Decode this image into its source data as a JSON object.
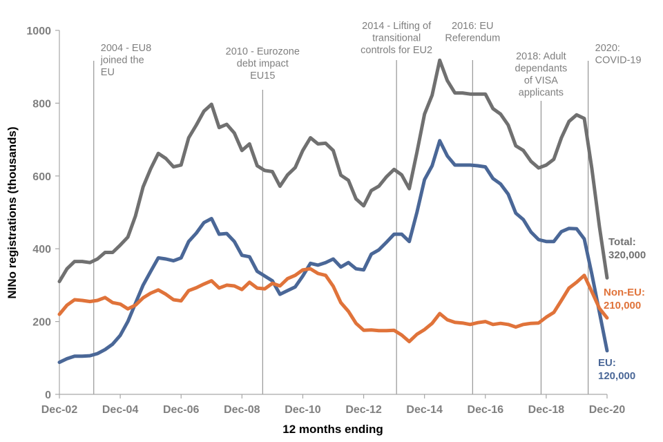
{
  "chart_data": {
    "type": "line",
    "title": "",
    "xlabel": "12 months ending",
    "ylabel": "NINo registrations (thousands)",
    "ylim": [
      0,
      1000
    ],
    "yticks": [
      0,
      200,
      400,
      600,
      800,
      1000
    ],
    "x_range": [
      2002.92,
      2020.92
    ],
    "xticks": [
      {
        "label": "Dec-02",
        "x": 2002.92
      },
      {
        "label": "Dec-04",
        "x": 2004.92
      },
      {
        "label": "Dec-06",
        "x": 2006.92
      },
      {
        "label": "Dec-08",
        "x": 2008.92
      },
      {
        "label": "Dec-10",
        "x": 2010.92
      },
      {
        "label": "Dec-12",
        "x": 2012.92
      },
      {
        "label": "Dec-14",
        "x": 2014.92
      },
      {
        "label": "Dec-16",
        "x": 2016.92
      },
      {
        "label": "Dec-18",
        "x": 2018.92
      },
      {
        "label": "Dec-20",
        "x": 2020.92
      }
    ],
    "grid": false,
    "series": [
      {
        "name": "Total",
        "color": "#707070",
        "end_label": [
          "Total:",
          "320,000"
        ],
        "points": [
          [
            2002.92,
            310
          ],
          [
            2003.17,
            345
          ],
          [
            2003.42,
            365
          ],
          [
            2003.67,
            365
          ],
          [
            2003.92,
            362
          ],
          [
            2004.17,
            372
          ],
          [
            2004.42,
            390
          ],
          [
            2004.67,
            390
          ],
          [
            2004.92,
            410
          ],
          [
            2005.17,
            432
          ],
          [
            2005.42,
            490
          ],
          [
            2005.67,
            570
          ],
          [
            2005.92,
            620
          ],
          [
            2006.17,
            662
          ],
          [
            2006.42,
            648
          ],
          [
            2006.67,
            625
          ],
          [
            2006.92,
            630
          ],
          [
            2007.17,
            705
          ],
          [
            2007.42,
            740
          ],
          [
            2007.67,
            778
          ],
          [
            2007.92,
            797
          ],
          [
            2008.17,
            733
          ],
          [
            2008.42,
            742
          ],
          [
            2008.67,
            718
          ],
          [
            2008.92,
            670
          ],
          [
            2009.17,
            688
          ],
          [
            2009.42,
            628
          ],
          [
            2009.67,
            615
          ],
          [
            2009.92,
            612
          ],
          [
            2010.17,
            572
          ],
          [
            2010.42,
            603
          ],
          [
            2010.67,
            623
          ],
          [
            2010.92,
            670
          ],
          [
            2011.17,
            705
          ],
          [
            2011.42,
            688
          ],
          [
            2011.67,
            690
          ],
          [
            2011.92,
            670
          ],
          [
            2012.17,
            602
          ],
          [
            2012.42,
            588
          ],
          [
            2012.67,
            537
          ],
          [
            2012.92,
            518
          ],
          [
            2013.17,
            560
          ],
          [
            2013.42,
            572
          ],
          [
            2013.67,
            598
          ],
          [
            2013.92,
            618
          ],
          [
            2014.17,
            603
          ],
          [
            2014.42,
            565
          ],
          [
            2014.67,
            665
          ],
          [
            2014.92,
            770
          ],
          [
            2015.17,
            822
          ],
          [
            2015.42,
            918
          ],
          [
            2015.67,
            862
          ],
          [
            2015.92,
            828
          ],
          [
            2016.17,
            828
          ],
          [
            2016.42,
            825
          ],
          [
            2016.67,
            825
          ],
          [
            2016.92,
            825
          ],
          [
            2017.17,
            785
          ],
          [
            2017.42,
            770
          ],
          [
            2017.67,
            740
          ],
          [
            2017.92,
            683
          ],
          [
            2018.17,
            670
          ],
          [
            2018.42,
            640
          ],
          [
            2018.67,
            622
          ],
          [
            2018.92,
            630
          ],
          [
            2019.17,
            646
          ],
          [
            2019.42,
            705
          ],
          [
            2019.67,
            750
          ],
          [
            2019.92,
            768
          ],
          [
            2020.17,
            758
          ],
          [
            2020.42,
            620
          ],
          [
            2020.67,
            460
          ],
          [
            2020.92,
            320
          ]
        ]
      },
      {
        "name": "EU",
        "color": "#4a6797",
        "end_label": [
          "EU:",
          "120,000"
        ],
        "points": [
          [
            2002.92,
            88
          ],
          [
            2003.17,
            98
          ],
          [
            2003.42,
            105
          ],
          [
            2003.67,
            105
          ],
          [
            2003.92,
            106
          ],
          [
            2004.17,
            112
          ],
          [
            2004.42,
            123
          ],
          [
            2004.67,
            138
          ],
          [
            2004.92,
            162
          ],
          [
            2005.17,
            200
          ],
          [
            2005.42,
            250
          ],
          [
            2005.67,
            300
          ],
          [
            2005.92,
            338
          ],
          [
            2006.17,
            375
          ],
          [
            2006.42,
            372
          ],
          [
            2006.67,
            367
          ],
          [
            2006.92,
            375
          ],
          [
            2007.17,
            420
          ],
          [
            2007.42,
            443
          ],
          [
            2007.67,
            472
          ],
          [
            2007.92,
            483
          ],
          [
            2008.17,
            440
          ],
          [
            2008.42,
            442
          ],
          [
            2008.67,
            420
          ],
          [
            2008.92,
            382
          ],
          [
            2009.17,
            378
          ],
          [
            2009.42,
            338
          ],
          [
            2009.67,
            325
          ],
          [
            2009.92,
            312
          ],
          [
            2010.17,
            275
          ],
          [
            2010.42,
            285
          ],
          [
            2010.67,
            295
          ],
          [
            2010.92,
            325
          ],
          [
            2011.17,
            360
          ],
          [
            2011.42,
            355
          ],
          [
            2011.67,
            362
          ],
          [
            2011.92,
            372
          ],
          [
            2012.17,
            350
          ],
          [
            2012.42,
            362
          ],
          [
            2012.67,
            345
          ],
          [
            2012.92,
            342
          ],
          [
            2013.17,
            385
          ],
          [
            2013.42,
            397
          ],
          [
            2013.67,
            418
          ],
          [
            2013.92,
            440
          ],
          [
            2014.17,
            440
          ],
          [
            2014.42,
            420
          ],
          [
            2014.67,
            500
          ],
          [
            2014.92,
            590
          ],
          [
            2015.17,
            628
          ],
          [
            2015.42,
            697
          ],
          [
            2015.67,
            655
          ],
          [
            2015.92,
            630
          ],
          [
            2016.17,
            630
          ],
          [
            2016.42,
            630
          ],
          [
            2016.67,
            628
          ],
          [
            2016.92,
            625
          ],
          [
            2017.17,
            593
          ],
          [
            2017.42,
            578
          ],
          [
            2017.67,
            550
          ],
          [
            2017.92,
            498
          ],
          [
            2018.17,
            480
          ],
          [
            2018.42,
            446
          ],
          [
            2018.67,
            425
          ],
          [
            2018.92,
            420
          ],
          [
            2019.17,
            420
          ],
          [
            2019.42,
            447
          ],
          [
            2019.67,
            456
          ],
          [
            2019.92,
            455
          ],
          [
            2020.17,
            427
          ],
          [
            2020.42,
            330
          ],
          [
            2020.67,
            225
          ],
          [
            2020.92,
            120
          ]
        ]
      },
      {
        "name": "Non-EU",
        "color": "#e0733a",
        "end_label": [
          "Non-EU:",
          "210,000"
        ],
        "points": [
          [
            2002.92,
            220
          ],
          [
            2003.17,
            245
          ],
          [
            2003.42,
            260
          ],
          [
            2003.67,
            258
          ],
          [
            2003.92,
            255
          ],
          [
            2004.17,
            258
          ],
          [
            2004.42,
            266
          ],
          [
            2004.67,
            252
          ],
          [
            2004.92,
            248
          ],
          [
            2005.17,
            235
          ],
          [
            2005.42,
            245
          ],
          [
            2005.67,
            265
          ],
          [
            2005.92,
            278
          ],
          [
            2006.17,
            287
          ],
          [
            2006.42,
            275
          ],
          [
            2006.67,
            260
          ],
          [
            2006.92,
            257
          ],
          [
            2007.17,
            285
          ],
          [
            2007.42,
            293
          ],
          [
            2007.67,
            303
          ],
          [
            2007.92,
            312
          ],
          [
            2008.17,
            292
          ],
          [
            2008.42,
            300
          ],
          [
            2008.67,
            298
          ],
          [
            2008.92,
            288
          ],
          [
            2009.17,
            308
          ],
          [
            2009.42,
            292
          ],
          [
            2009.67,
            290
          ],
          [
            2009.92,
            305
          ],
          [
            2010.17,
            298
          ],
          [
            2010.42,
            318
          ],
          [
            2010.67,
            327
          ],
          [
            2010.92,
            342
          ],
          [
            2011.17,
            345
          ],
          [
            2011.42,
            332
          ],
          [
            2011.67,
            327
          ],
          [
            2011.92,
            297
          ],
          [
            2012.17,
            252
          ],
          [
            2012.42,
            228
          ],
          [
            2012.67,
            195
          ],
          [
            2012.92,
            176
          ],
          [
            2013.17,
            177
          ],
          [
            2013.42,
            175
          ],
          [
            2013.67,
            175
          ],
          [
            2013.92,
            176
          ],
          [
            2014.17,
            163
          ],
          [
            2014.42,
            145
          ],
          [
            2014.67,
            165
          ],
          [
            2014.92,
            178
          ],
          [
            2015.17,
            195
          ],
          [
            2015.42,
            222
          ],
          [
            2015.67,
            205
          ],
          [
            2015.92,
            198
          ],
          [
            2016.17,
            196
          ],
          [
            2016.42,
            192
          ],
          [
            2016.67,
            197
          ],
          [
            2016.92,
            200
          ],
          [
            2017.17,
            192
          ],
          [
            2017.42,
            195
          ],
          [
            2017.67,
            192
          ],
          [
            2017.92,
            185
          ],
          [
            2018.17,
            192
          ],
          [
            2018.42,
            195
          ],
          [
            2018.67,
            196
          ],
          [
            2018.92,
            212
          ],
          [
            2019.17,
            225
          ],
          [
            2019.42,
            258
          ],
          [
            2019.67,
            292
          ],
          [
            2019.92,
            308
          ],
          [
            2020.17,
            327
          ],
          [
            2020.42,
            282
          ],
          [
            2020.67,
            236
          ],
          [
            2020.92,
            210
          ]
        ]
      }
    ],
    "annotations": [
      {
        "x": 2004.05,
        "text_anchor": "start",
        "lines": [
          "2004 - EU8",
          "joined the",
          "EU"
        ]
      },
      {
        "x": 2009.6,
        "text_anchor": "middle",
        "lines": [
          "2010 - Eurozone",
          "debt impact",
          "EU15"
        ]
      },
      {
        "x": 2014.0,
        "text_anchor": "middle",
        "lines": [
          "2014 - Lifting of",
          "transitional",
          "controls for EU2"
        ]
      },
      {
        "x": 2016.5,
        "text_anchor": "middle",
        "lines": [
          "2016: EU",
          "Referendum"
        ]
      },
      {
        "x": 2018.75,
        "text_anchor": "middle",
        "lines": [
          "2018: Adult",
          "dependants",
          "of VISA",
          "applicants"
        ]
      },
      {
        "x": 2020.3,
        "text_anchor": "start",
        "lines": [
          "2020:",
          "COVID-19"
        ]
      }
    ]
  }
}
